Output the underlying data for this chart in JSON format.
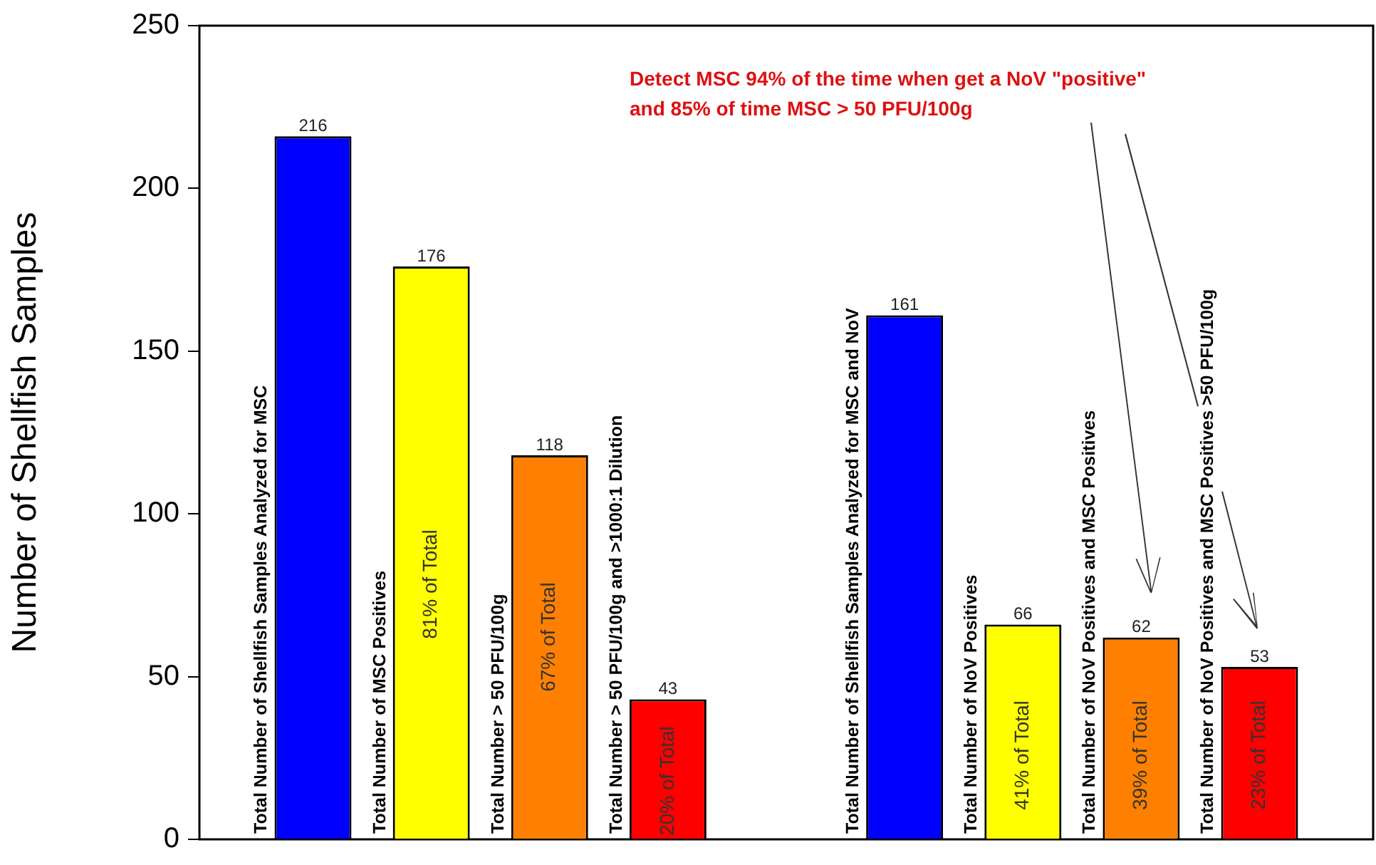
{
  "chart_data": {
    "type": "bar",
    "ylabel": "Number of Shellfish Samples",
    "categories": [
      "Total Number of Shellfish Samples Analyzed for MSC",
      "Total Number of MSC Positives",
      "Total Number > 50 PFU/100g",
      "Total Number > 50 PFU/100g and >1000:1 Dilution",
      null,
      "Total Number of Shellfish Samples Analyzed for MSC and NoV",
      "Total Number of NoV Positives",
      "Total Number of NoV Positives and MSC Positives",
      "Total Number of NoV Positives and MSC Positives >50 PFU/100g"
    ],
    "values": [
      216,
      176,
      118,
      43,
      null,
      161,
      66,
      62,
      53
    ],
    "colors": [
      "#0000ff",
      "#ffff00",
      "#ff8000",
      "#ff0000",
      "#ffffff",
      "#0000ff",
      "#ffff00",
      "#ff8000",
      "#ff0000"
    ],
    "ylim": [
      0,
      250
    ],
    "yticks": [
      0,
      50,
      100,
      150,
      200,
      250
    ],
    "grid": false,
    "legend": false,
    "data_labels": true,
    "tick_labels": "y",
    "annotations": [
      "81% of Total",
      "67% of Total",
      "20% of Total",
      "41% of Total",
      "39% of Total",
      "23% of Total",
      "Detect MSC 94% of the time when get a NoV \"positive\"\nand 85% of time MSC > 50 PFU/100g"
    ]
  }
}
